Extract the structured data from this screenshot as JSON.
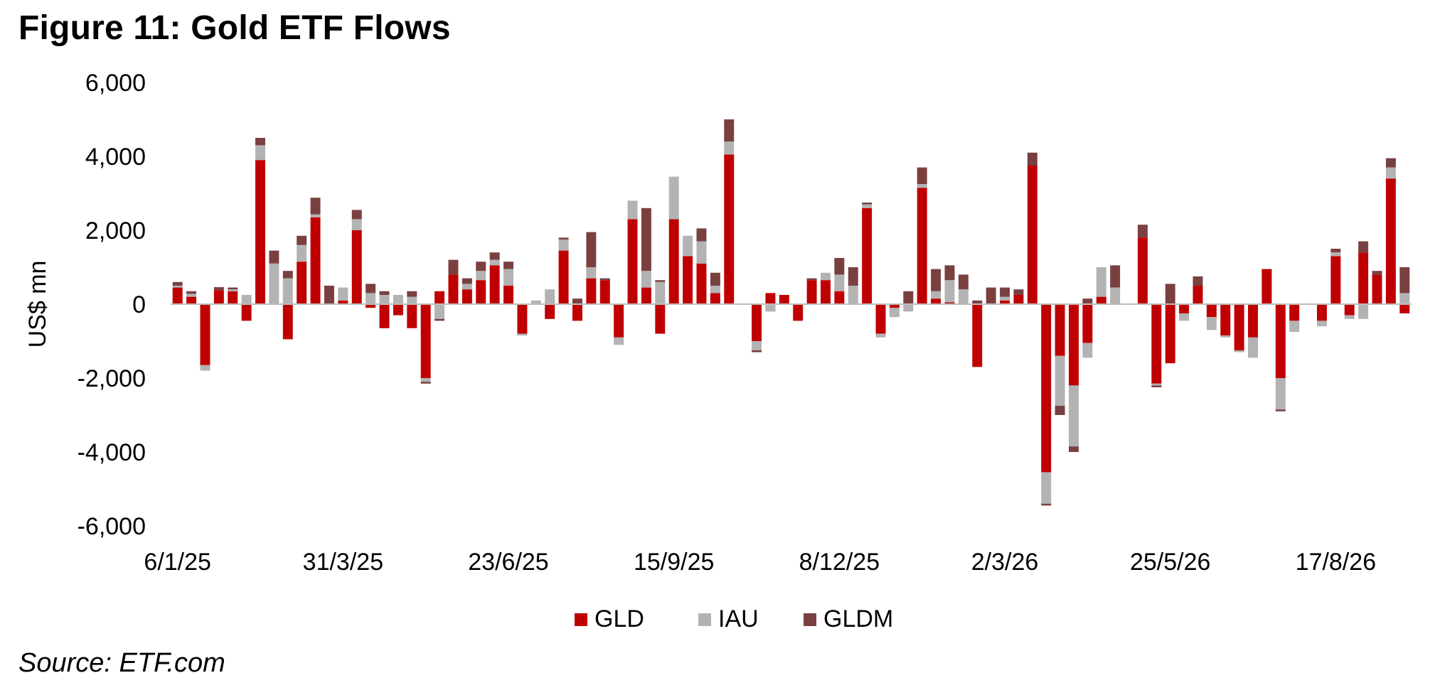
{
  "figure": {
    "title": "Figure 11: Gold ETF Flows",
    "source": "Source: ETF.com"
  },
  "colors": {
    "GLD": "#c00000",
    "IAU": "#b3b3b3",
    "GLDM": "#7a4040"
  },
  "chart_data": {
    "type": "bar",
    "stacked": true,
    "title": "",
    "xlabel": "",
    "ylabel": "US$ mn",
    "ylim": [
      -6000,
      6000
    ],
    "yticks": [
      -6000,
      -4000,
      -2000,
      0,
      2000,
      4000,
      6000
    ],
    "ytick_labels": [
      "-6,000",
      "-4,000",
      "-2,000",
      "0",
      "2,000",
      "4,000",
      "6,000"
    ],
    "x_tick_labels": [
      {
        "label": "6/1/25",
        "index": 0
      },
      {
        "label": "31/3/25",
        "index": 12
      },
      {
        "label": "23/6/25",
        "index": 24
      },
      {
        "label": "15/9/25",
        "index": 36
      },
      {
        "label": "8/12/25",
        "index": 48
      },
      {
        "label": "2/3/26",
        "index": 60
      },
      {
        "label": "25/5/26",
        "index": 72
      },
      {
        "label": "17/8/26",
        "index": 84
      }
    ],
    "legend": {
      "position": "bottom",
      "entries": [
        "GLD",
        "IAU",
        "GLDM"
      ]
    },
    "grid": false,
    "series": [
      {
        "name": "GLD",
        "values": [
          450,
          200,
          -1650,
          380,
          350,
          -450,
          3900,
          0,
          -950,
          1150,
          2350,
          0,
          100,
          2000,
          -100,
          -650,
          -300,
          -650,
          -2000,
          350,
          800,
          400,
          650,
          1050,
          500,
          -800,
          0,
          -400,
          1450,
          -450,
          700,
          650,
          -900,
          2300,
          450,
          -800,
          2300,
          1300,
          1100,
          300,
          4050,
          0,
          -1000,
          300,
          250,
          -450,
          650,
          650,
          350,
          0,
          2600,
          -800,
          -100,
          0,
          3150,
          150,
          50,
          0,
          -1700,
          0,
          100,
          250,
          3750,
          -4550,
          -1400,
          -2200,
          -1050,
          200,
          0,
          0,
          1800,
          -2150,
          -1600,
          -250,
          500,
          -350,
          -850,
          -1250,
          -900,
          950,
          -2000,
          -450,
          0,
          -450,
          1300,
          -300,
          1400,
          800,
          3400,
          -250
        ]
      },
      {
        "name": "IAU",
        "values": [
          50,
          80,
          -150,
          0,
          50,
          250,
          400,
          1100,
          700,
          450,
          80,
          0,
          350,
          300,
          300,
          250,
          250,
          200,
          -100,
          -400,
          0,
          150,
          250,
          150,
          450,
          -50,
          100,
          400,
          300,
          0,
          300,
          0,
          -200,
          500,
          450,
          600,
          1150,
          550,
          600,
          200,
          350,
          0,
          -250,
          -200,
          0,
          0,
          0,
          200,
          450,
          500,
          100,
          -100,
          -250,
          -200,
          100,
          200,
          600,
          400,
          0,
          0,
          100,
          0,
          0,
          -850,
          -1350,
          -1650,
          -400,
          800,
          450,
          0,
          0,
          -50,
          0,
          -200,
          0,
          -350,
          -50,
          -50,
          -550,
          0,
          -850,
          -300,
          0,
          -150,
          100,
          -100,
          -400,
          0,
          300,
          300
        ]
      },
      {
        "name": "GLDM",
        "values": [
          100,
          70,
          0,
          80,
          50,
          0,
          200,
          350,
          200,
          250,
          450,
          500,
          0,
          250,
          250,
          100,
          0,
          150,
          -50,
          -50,
          400,
          150,
          250,
          200,
          200,
          0,
          0,
          0,
          50,
          150,
          950,
          50,
          0,
          0,
          1700,
          50,
          0,
          0,
          350,
          350,
          600,
          0,
          -50,
          0,
          0,
          0,
          50,
          0,
          450,
          500,
          50,
          0,
          0,
          350,
          450,
          600,
          400,
          400,
          100,
          450,
          250,
          150,
          350,
          -50,
          -250,
          -150,
          150,
          0,
          600,
          0,
          350,
          -50,
          550,
          0,
          250,
          0,
          0,
          0,
          0,
          0,
          -50,
          0,
          0,
          0,
          100,
          0,
          300,
          100,
          250,
          700
        ]
      }
    ]
  }
}
